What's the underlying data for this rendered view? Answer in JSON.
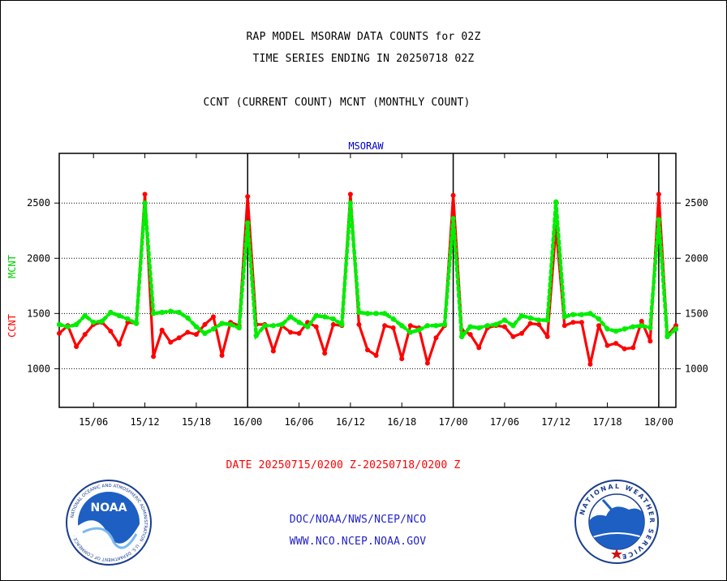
{
  "header": {
    "title": "RAP MODEL MSORAW DATA COUNTS for 02Z",
    "subtitle": "TIME SERIES ENDING IN 20250718 02Z",
    "legend_text": "CCNT (CURRENT COUNT) MCNT (MONTHLY COUNT)"
  },
  "footer": {
    "date_range": "DATE 20250715/0200 Z-20250718/0200 Z",
    "org": "DOC/NOAA/NWS/NCEP/NCO",
    "url": "WWW.NCO.NCEP.NOAA.GOV"
  },
  "logos": {
    "noaa_text": "NOAA",
    "noaa_ring": "NATIONAL OCEANIC AND ATMOSPHERIC ADMINISTRATION · U.S. DEPARTMENT OF COMMERCE ·",
    "nws_ring": "NATIONAL WEATHER SERVICE"
  },
  "chart_data": {
    "type": "line",
    "title": "MSORAW",
    "ylabel_ccnt": "CCNT",
    "ylabel_mcnt": "MCNT",
    "ylim": [
      650,
      2950
    ],
    "yticks": [
      1000,
      1500,
      2000,
      2500
    ],
    "ytick_labels": [
      "1000",
      "1500",
      "2000",
      "2500"
    ],
    "grid": "horizontal dotted at y ticks",
    "xticks": [
      4,
      10,
      16,
      22,
      28,
      34,
      40,
      46,
      52,
      58,
      64,
      70
    ],
    "xtick_labels": [
      "15/06",
      "15/12",
      "15/18",
      "16/00",
      "16/06",
      "16/12",
      "16/18",
      "17/00",
      "17/06",
      "17/12",
      "17/18",
      "18/00"
    ],
    "day_boundaries": [
      22,
      46,
      70
    ],
    "x_range": [
      0,
      72
    ],
    "x_note": "hours since 20250715/0200 Z",
    "colors": {
      "ccnt": "#ff0000",
      "mcnt": "#00ee00",
      "title": "#0000cc"
    },
    "series": [
      {
        "name": "CCNT",
        "values": [
          1320,
          1390,
          1200,
          1310,
          1400,
          1420,
          1340,
          1220,
          1420,
          1410,
          2580,
          1110,
          1350,
          1240,
          1280,
          1330,
          1310,
          1400,
          1470,
          1120,
          1420,
          1390,
          2560,
          1400,
          1400,
          1160,
          1390,
          1330,
          1320,
          1420,
          1380,
          1140,
          1400,
          1390,
          2580,
          1400,
          1170,
          1120,
          1390,
          1370,
          1090,
          1390,
          1370,
          1050,
          1280,
          1390,
          2570,
          1350,
          1310,
          1190,
          1370,
          1390,
          1380,
          1290,
          1320,
          1410,
          1400,
          1290,
          2280,
          1390,
          1420,
          1420,
          1040,
          1390,
          1210,
          1230,
          1180,
          1190,
          1430,
          1250,
          2580,
          1300,
          1390
        ]
      },
      {
        "name": "MCNT",
        "values": [
          1400,
          1380,
          1400,
          1480,
          1420,
          1430,
          1510,
          1480,
          1450,
          1410,
          2500,
          1500,
          1510,
          1520,
          1510,
          1460,
          1380,
          1320,
          1360,
          1410,
          1400,
          1370,
          2320,
          1300,
          1390,
          1390,
          1400,
          1470,
          1420,
          1380,
          1480,
          1470,
          1450,
          1400,
          2500,
          1510,
          1500,
          1500,
          1500,
          1450,
          1390,
          1330,
          1350,
          1390,
          1390,
          1400,
          2360,
          1290,
          1380,
          1370,
          1390,
          1400,
          1440,
          1390,
          1480,
          1460,
          1440,
          1440,
          2510,
          1470,
          1490,
          1490,
          1500,
          1450,
          1360,
          1340,
          1360,
          1380,
          1390,
          1370,
          2350,
          1290,
          1360
        ]
      }
    ]
  }
}
